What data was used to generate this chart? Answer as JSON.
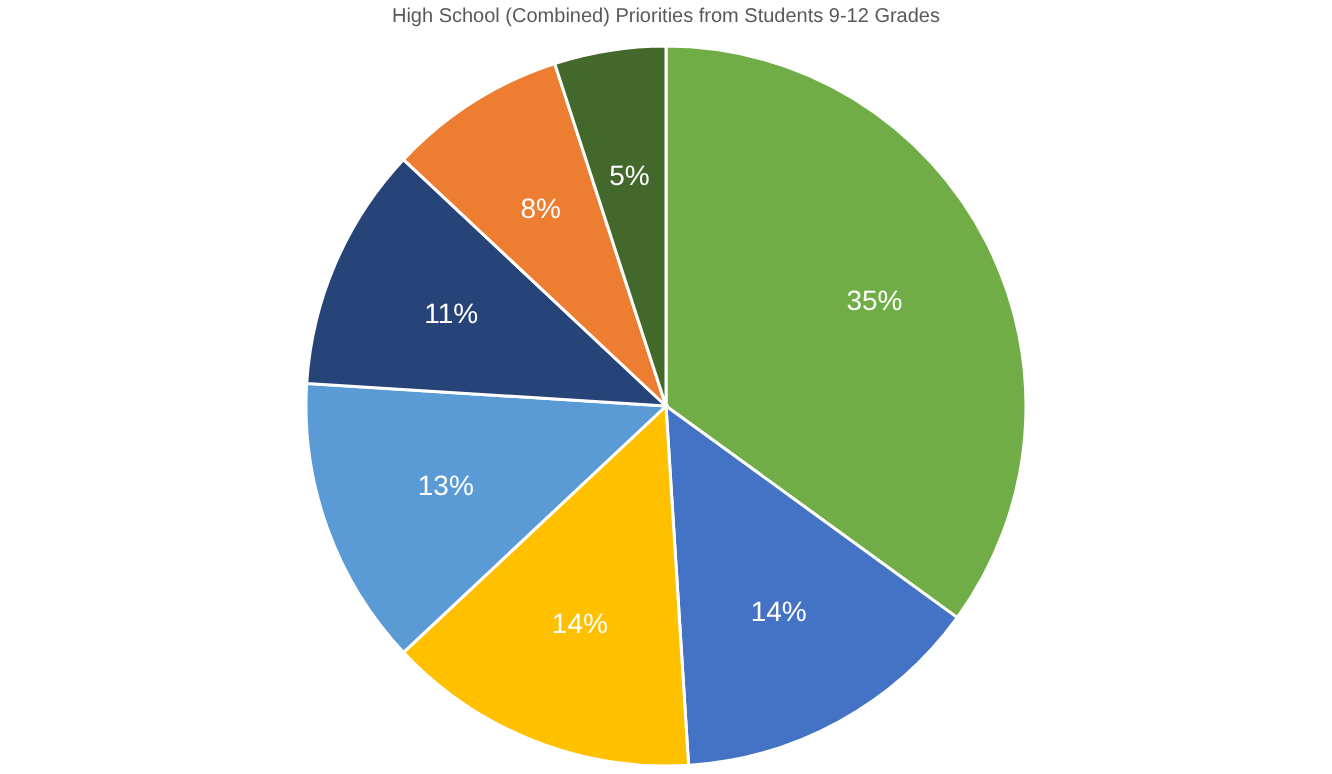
{
  "chart_data": {
    "type": "pie",
    "title": "High School (Combined) Priorities from Students 9-12 Grades",
    "categories": [
      null,
      null,
      null,
      null,
      null,
      null,
      null
    ],
    "values": [
      35,
      14,
      14,
      13,
      11,
      8,
      5
    ],
    "colors": [
      "#70ad47",
      "#4472c4",
      "#ffc000",
      "#5b9bd5",
      "#264478",
      "#ed7d31",
      "#43682b"
    ],
    "value_labels": [
      "35%",
      "14%",
      "14%",
      "13%",
      "11%",
      "8%",
      "5%"
    ]
  }
}
